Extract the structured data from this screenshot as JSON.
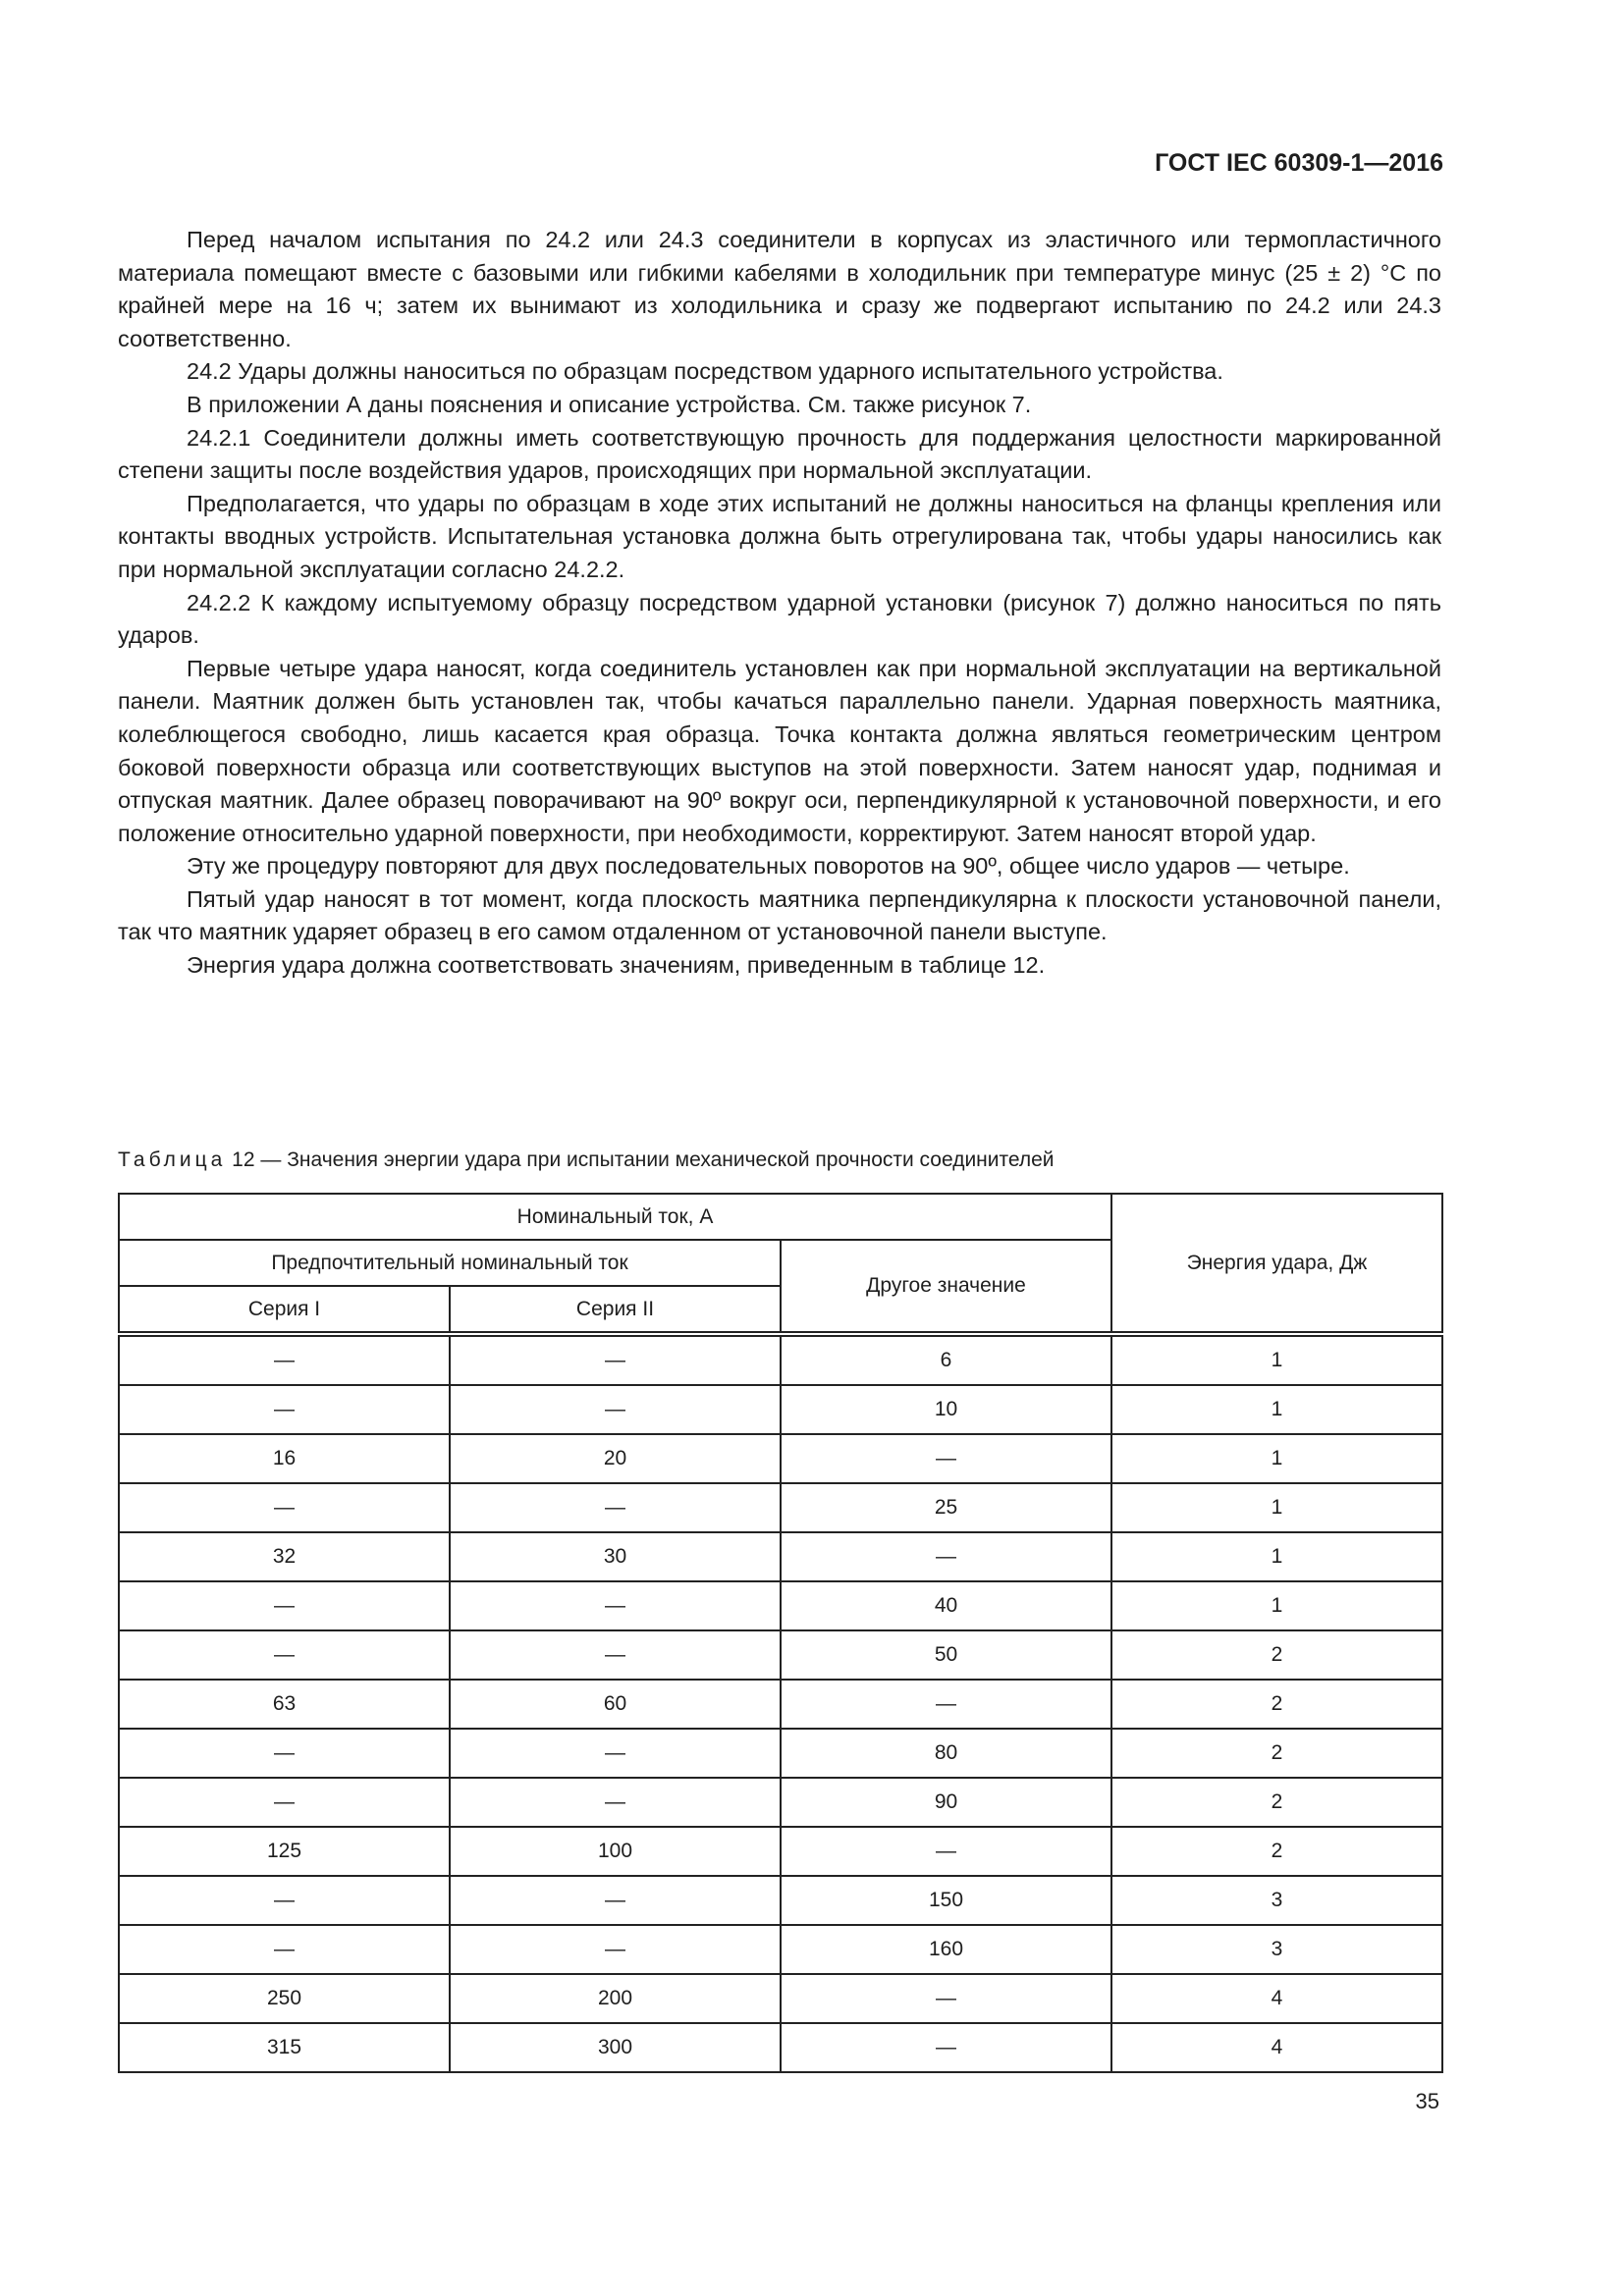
{
  "header": {
    "doc_id": "ГОСТ IEC 60309-1—2016"
  },
  "paragraphs": [
    "Перед началом испытания по 24.2 или 24.3 соединители в корпусах из эластичного или термопластичного материала помещают вместе с базовыми или гибкими кабелями в холодильник при температуре минус (25 ± 2) °С по крайней мере на 16 ч; затем их вынимают из холодильника и сразу же подвергают испытанию по 24.2 или 24.3 соответственно.",
    "24.2 Удары должны наноситься по образцам посредством ударного испытательного устройства.",
    "В приложении А даны пояснения и описание устройства. См. также рисунок 7.",
    "24.2.1 Соединители должны иметь соответствующую прочность для поддержания целостности маркированной степени защиты после воздействия ударов, происходящих при нормальной эксплуатации.",
    "Предполагается, что удары по образцам в ходе этих испытаний не должны наноситься на фланцы крепления или контакты вводных устройств. Испытательная установка должна быть отрегулирована так, чтобы удары наносились как при нормальной эксплуатации согласно 24.2.2.",
    "24.2.2 К каждому испытуемому образцу посредством ударной установки (рисунок 7) должно наноситься по пять ударов.",
    "Первые четыре удара наносят, когда соединитель установлен как при нормальной эксплуатации на вертикальной панели. Маятник должен быть установлен так, чтобы качаться параллельно панели. Ударная поверхность маятника, колеблющегося свободно, лишь касается края образца. Точка контакта должна являться геометрическим центром боковой поверхности образца или соответствующих выступов на этой поверхности. Затем наносят удар, поднимая и отпуская маятник. Далее образец поворачивают на 90º вокруг оси, перпендикулярной к установочной поверхности, и его положение относительно ударной поверхности, при необходимости, корректируют. Затем наносят второй удар.",
    "Эту же процедуру повторяют для двух последовательных поворотов на 90º, общее число ударов — четыре.",
    "Пятый удар наносят в тот момент, когда плоскость маятника перпендикулярна к плоскости установочной панели, так что маятник ударяет образец в его самом отдаленном от установочной панели выступе.",
    "Энергия удара должна соответствовать значениям, приведенным в таблице 12."
  ],
  "table": {
    "caption_label": "Таблица",
    "caption_rest": " 12 — Значения энергии удара при испытании механической прочности соединителей",
    "headers": {
      "nominal_current": "Номинальный ток, А",
      "preferred": "Предпочтительный номинальный ток",
      "series1": "Серия I",
      "series2": "Серия II",
      "other": "Другое значение",
      "energy": "Энергия удара, Дж"
    },
    "rows": [
      [
        "—",
        "—",
        "6",
        "1"
      ],
      [
        "—",
        "—",
        "10",
        "1"
      ],
      [
        "16",
        "20",
        "—",
        "1"
      ],
      [
        "—",
        "—",
        "25",
        "1"
      ],
      [
        "32",
        "30",
        "—",
        "1"
      ],
      [
        "—",
        "—",
        "40",
        "1"
      ],
      [
        "—",
        "—",
        "50",
        "2"
      ],
      [
        "63",
        "60",
        "—",
        "2"
      ],
      [
        "—",
        "—",
        "80",
        "2"
      ],
      [
        "—",
        "—",
        "90",
        "2"
      ],
      [
        "125",
        "100",
        "—",
        "2"
      ],
      [
        "—",
        "—",
        "150",
        "3"
      ],
      [
        "—",
        "—",
        "160",
        "3"
      ],
      [
        "250",
        "200",
        "—",
        "4"
      ],
      [
        "315",
        "300",
        "—",
        "4"
      ]
    ]
  },
  "page_number": "35"
}
